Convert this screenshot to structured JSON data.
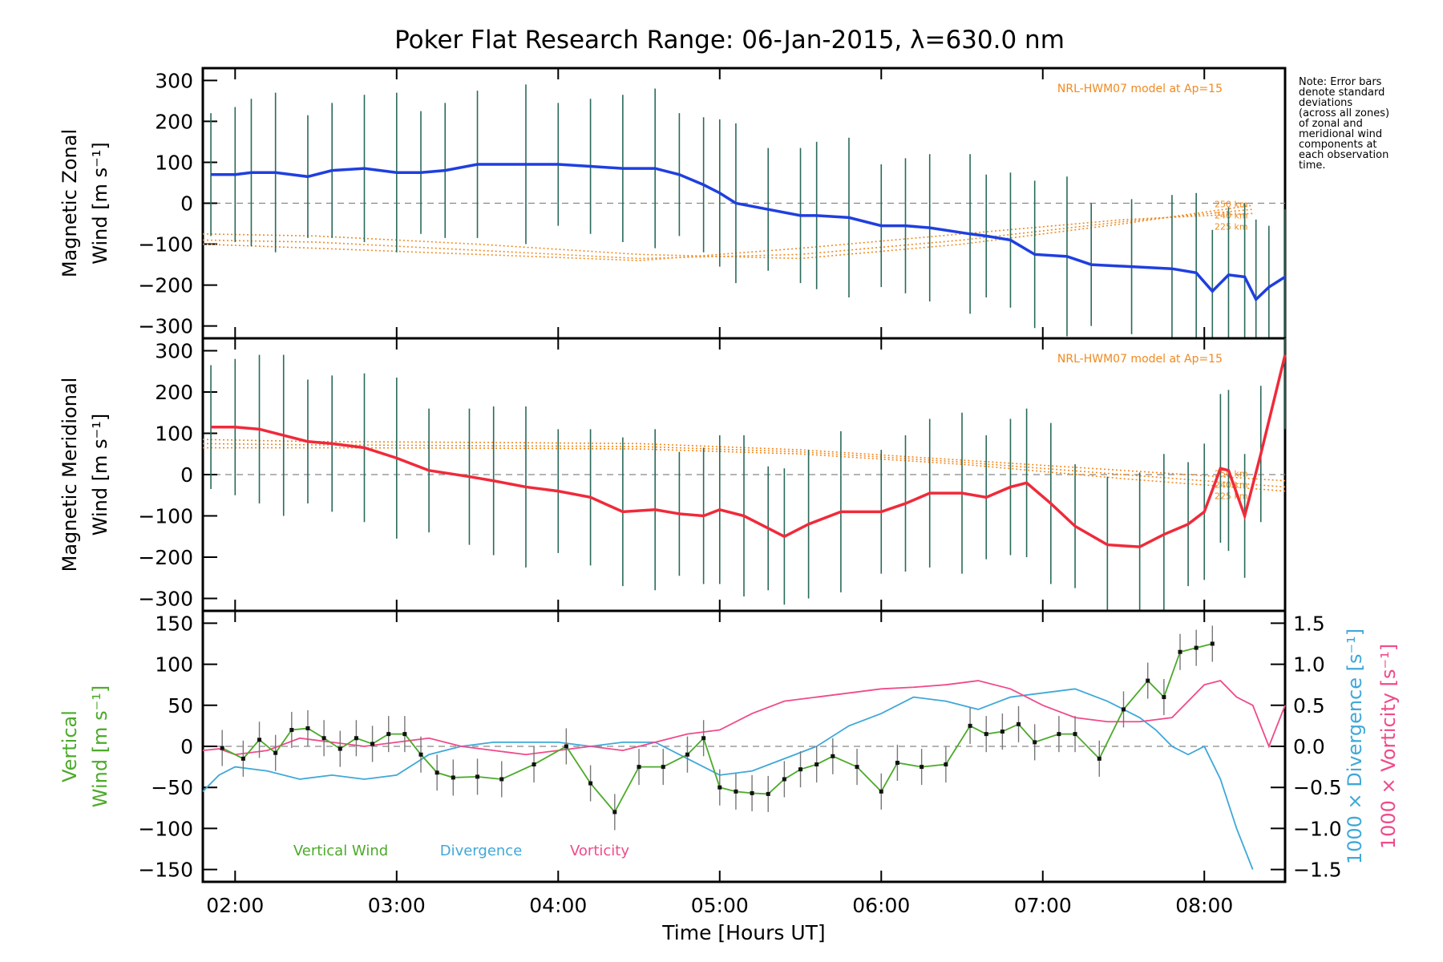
{
  "title": "Poker Flat Research Range: 06-Jan-2015, λ=630.0 nm",
  "note": "Note: Error bars\ndenote standard\ndeviations\n(across all zones)\nof zonal and\nmeridional wind\ncomponents at\neach observation\ntime.",
  "colors": {
    "zonal": "#1f3fe0",
    "meridional": "#f02a3a",
    "model": "#f08a20",
    "vertical": "#4caa2a",
    "divergence": "#3fa8d8",
    "vorticity": "#f04a8a"
  },
  "chart_data": [
    {
      "type": "line",
      "name": "zonal",
      "ylabel1": "Magnetic Zonal",
      "ylabel2": "Wind",
      "yunits": "[m s⁻¹]",
      "ylim": [
        -330,
        330
      ],
      "yticks": [
        -300,
        -200,
        -100,
        0,
        100,
        200,
        300
      ],
      "xlim": [
        1.8,
        8.5
      ],
      "model_label": "NRL-HWM07 model at Ap=15",
      "model_alt_labels": [
        "250 km",
        "240 km",
        "225 km"
      ],
      "x": [
        1.85,
        2.0,
        2.1,
        2.25,
        2.45,
        2.6,
        2.8,
        3.0,
        3.15,
        3.3,
        3.5,
        3.8,
        4.0,
        4.2,
        4.4,
        4.6,
        4.75,
        4.9,
        5.0,
        5.1,
        5.3,
        5.5,
        5.6,
        5.8,
        6.0,
        6.15,
        6.3,
        6.55,
        6.65,
        6.8,
        6.95,
        7.15,
        7.3,
        7.55,
        7.8,
        7.95,
        8.05,
        8.15,
        8.25,
        8.32,
        8.4,
        8.5
      ],
      "values": [
        70,
        70,
        75,
        75,
        65,
        80,
        85,
        75,
        75,
        80,
        95,
        95,
        95,
        90,
        85,
        85,
        70,
        45,
        25,
        0,
        -15,
        -30,
        -30,
        -35,
        -55,
        -55,
        -60,
        -75,
        -80,
        -90,
        -125,
        -130,
        -150,
        -155,
        -160,
        -170,
        -215,
        -175,
        -180,
        -235,
        -205,
        -180
      ],
      "model_series": [
        {
          "x": [
            1.8,
            2.5,
            3.5,
            4.5,
            5.5,
            6.5,
            7.5,
            8.3
          ],
          "values": [
            -75,
            -80,
            -100,
            -125,
            -135,
            -100,
            -50,
            -5
          ]
        },
        {
          "x": [
            1.8,
            2.5,
            3.5,
            4.5,
            5.5,
            6.5,
            7.5,
            8.3
          ],
          "values": [
            -90,
            -95,
            -115,
            -135,
            -125,
            -90,
            -45,
            -15
          ]
        },
        {
          "x": [
            1.8,
            2.5,
            3.5,
            4.5,
            5.5,
            6.5,
            7.5,
            8.3
          ],
          "values": [
            -100,
            -110,
            -125,
            -140,
            -110,
            -75,
            -40,
            -25
          ]
        }
      ]
    },
    {
      "type": "line",
      "name": "meridional",
      "ylabel1": "Magnetic Meridional",
      "ylabel2": "Wind",
      "yunits": "[m s⁻¹]",
      "ylim": [
        -330,
        330
      ],
      "yticks": [
        -300,
        -200,
        -100,
        0,
        100,
        200,
        300
      ],
      "xlim": [
        1.8,
        8.5
      ],
      "model_label": "NRL-HWM07 model at Ap=15",
      "model_alt_labels": [
        "250 km",
        "240 km",
        "225 km"
      ],
      "x": [
        1.85,
        2.0,
        2.15,
        2.3,
        2.45,
        2.6,
        2.8,
        3.0,
        3.2,
        3.45,
        3.6,
        3.8,
        4.0,
        4.2,
        4.4,
        4.6,
        4.75,
        4.9,
        5.0,
        5.15,
        5.3,
        5.4,
        5.55,
        5.75,
        6.0,
        6.15,
        6.3,
        6.5,
        6.65,
        6.8,
        6.9,
        7.05,
        7.2,
        7.4,
        7.6,
        7.75,
        7.9,
        8.0,
        8.1,
        8.15,
        8.25,
        8.35,
        8.5
      ],
      "values": [
        115,
        115,
        110,
        95,
        80,
        75,
        65,
        40,
        10,
        -5,
        -15,
        -30,
        -40,
        -55,
        -90,
        -85,
        -95,
        -100,
        -85,
        -100,
        -130,
        -150,
        -120,
        -90,
        -90,
        -70,
        -45,
        -45,
        -55,
        -30,
        -20,
        -70,
        -125,
        -170,
        -175,
        -145,
        -120,
        -90,
        15,
        10,
        -100,
        50,
        290
      ],
      "model_series": [
        {
          "x": [
            1.8,
            2.5,
            3.5,
            4.5,
            5.5,
            6.5,
            7.5,
            8.5
          ],
          "values": [
            85,
            80,
            78,
            75,
            60,
            35,
            10,
            -15
          ]
        },
        {
          "x": [
            1.8,
            2.5,
            3.5,
            4.5,
            5.5,
            6.5,
            7.5,
            8.5
          ],
          "values": [
            75,
            72,
            70,
            68,
            55,
            30,
            0,
            -30
          ]
        },
        {
          "x": [
            1.8,
            2.5,
            3.5,
            4.5,
            5.5,
            6.5,
            7.5,
            8.5
          ],
          "values": [
            65,
            65,
            64,
            62,
            50,
            25,
            -10,
            -40
          ]
        }
      ]
    },
    {
      "type": "line",
      "name": "vertical",
      "ylabel1": "Vertical",
      "ylabel2": "Wind",
      "yunits": "[m s⁻¹]",
      "right_label_divergence": "1000 × Divergence",
      "right_label_vorticity": "1000 × Vorticity",
      "right_units": "[s⁻¹]",
      "ylim": [
        -165,
        165
      ],
      "yticks": [
        -150,
        -100,
        -50,
        0,
        50,
        100,
        150
      ],
      "y2lim": [
        -1.65,
        1.65
      ],
      "y2ticks": [
        -1.5,
        -1.0,
        -0.5,
        0.0,
        0.5,
        1.0,
        1.5
      ],
      "y2ticklabels": [
        "−1.5",
        "−1.0",
        "−0.5",
        "0.0",
        "0.5",
        "1.0",
        "1.5"
      ],
      "xlim": [
        1.8,
        8.5
      ],
      "xticks": [
        2,
        3,
        4,
        5,
        6,
        7,
        8
      ],
      "xticklabels": [
        "02:00",
        "03:00",
        "04:00",
        "05:00",
        "06:00",
        "07:00",
        "08:00"
      ],
      "xlabel": "Time [Hours UT]",
      "legend": [
        "Vertical Wind",
        "Divergence",
        "Vorticity"
      ],
      "vertical_wind": {
        "x": [
          1.92,
          2.05,
          2.15,
          2.25,
          2.35,
          2.45,
          2.55,
          2.65,
          2.75,
          2.85,
          2.95,
          3.05,
          3.15,
          3.25,
          3.35,
          3.5,
          3.65,
          3.85,
          4.05,
          4.2,
          4.35,
          4.5,
          4.65,
          4.8,
          4.9,
          5.0,
          5.1,
          5.2,
          5.3,
          5.4,
          5.5,
          5.6,
          5.7,
          5.85,
          6.0,
          6.1,
          6.25,
          6.4,
          6.55,
          6.65,
          6.75,
          6.85,
          6.95,
          7.1,
          7.2,
          7.35,
          7.5,
          7.65,
          7.75,
          7.85,
          7.95,
          8.05
        ],
        "values": [
          -2,
          -15,
          8,
          -8,
          20,
          22,
          10,
          -3,
          10,
          3,
          15,
          15,
          -10,
          -32,
          -38,
          -37,
          -40,
          -22,
          0,
          -45,
          -80,
          -25,
          -25,
          -10,
          10,
          -50,
          -55,
          -57,
          -58,
          -40,
          -28,
          -22,
          -12,
          -25,
          -55,
          -20,
          -25,
          -22,
          25,
          15,
          18,
          27,
          5,
          15,
          15,
          -15,
          45,
          80,
          60,
          115,
          120,
          125
        ]
      },
      "divergence": {
        "x": [
          1.8,
          1.9,
          2.0,
          2.2,
          2.4,
          2.6,
          2.8,
          3.0,
          3.2,
          3.4,
          3.6,
          3.8,
          4.0,
          4.2,
          4.4,
          4.6,
          4.8,
          5.0,
          5.2,
          5.4,
          5.6,
          5.8,
          6.0,
          6.2,
          6.4,
          6.6,
          6.8,
          7.0,
          7.2,
          7.4,
          7.6,
          7.7,
          7.8,
          7.9,
          8.0,
          8.1,
          8.2,
          8.3
        ],
        "values": [
          -0.55,
          -0.35,
          -0.25,
          -0.3,
          -0.4,
          -0.35,
          -0.4,
          -0.35,
          -0.1,
          0.0,
          0.05,
          0.05,
          0.05,
          0.0,
          0.05,
          0.05,
          -0.15,
          -0.35,
          -0.3,
          -0.15,
          0.0,
          0.25,
          0.4,
          0.6,
          0.55,
          0.45,
          0.6,
          0.65,
          0.7,
          0.55,
          0.35,
          0.2,
          0.0,
          -0.1,
          0.0,
          -0.4,
          -1.0,
          -1.5
        ]
      },
      "vorticity": {
        "x": [
          1.8,
          1.9,
          2.0,
          2.2,
          2.4,
          2.6,
          2.8,
          3.0,
          3.2,
          3.4,
          3.6,
          3.8,
          4.0,
          4.2,
          4.4,
          4.6,
          4.8,
          5.0,
          5.2,
          5.4,
          5.6,
          5.8,
          6.0,
          6.2,
          6.4,
          6.6,
          6.8,
          7.0,
          7.2,
          7.4,
          7.6,
          7.8,
          8.0,
          8.1,
          8.2,
          8.3,
          8.4,
          8.5
        ],
        "values": [
          -0.05,
          -0.03,
          -0.1,
          -0.05,
          0.1,
          0.05,
          0.0,
          0.05,
          0.1,
          0.0,
          -0.05,
          -0.1,
          -0.05,
          0.0,
          -0.05,
          0.05,
          0.15,
          0.2,
          0.4,
          0.55,
          0.6,
          0.65,
          0.7,
          0.72,
          0.75,
          0.8,
          0.7,
          0.5,
          0.35,
          0.3,
          0.3,
          0.35,
          0.75,
          0.8,
          0.6,
          0.5,
          0.0,
          0.5
        ]
      }
    }
  ]
}
